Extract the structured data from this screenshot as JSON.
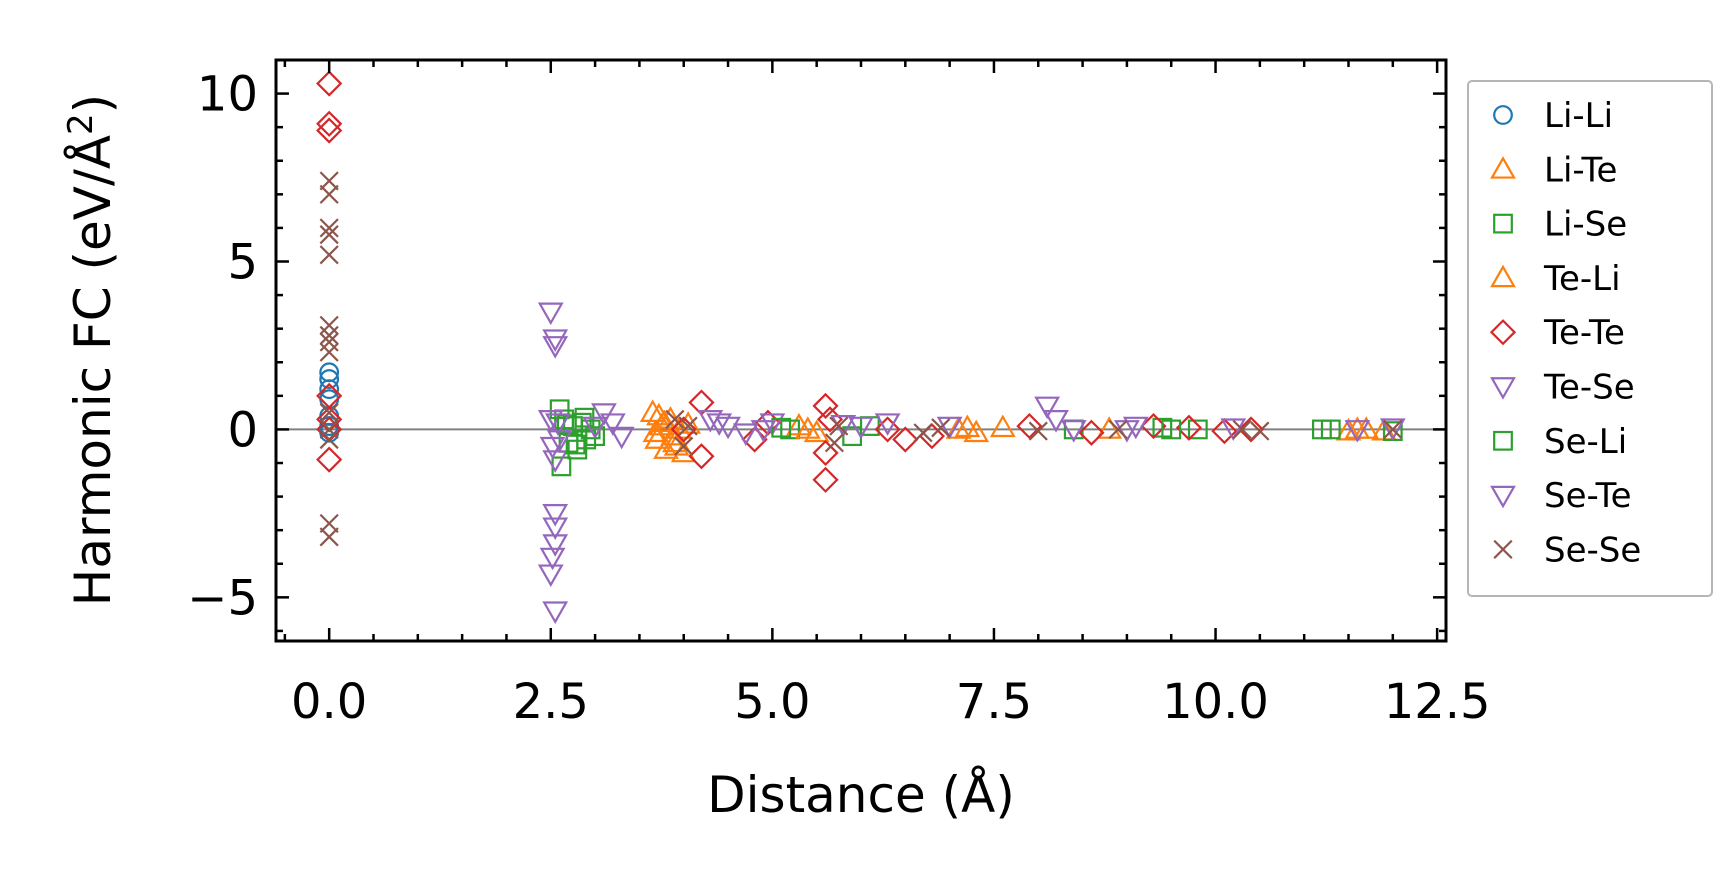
{
  "chart_data": {
    "type": "scatter",
    "xlabel": "Distance (Å)",
    "ylabel_main": "Harmonic FC (eV/Å",
    "ylabel_sup": "2",
    "ylabel_close": ")",
    "xlim": [
      -0.6,
      12.6
    ],
    "ylim": [
      -6.3,
      11.0
    ],
    "x_ticks": [
      0.0,
      2.5,
      5.0,
      7.5,
      10.0,
      12.5
    ],
    "x_tick_labels": [
      "0.0",
      "2.5",
      "5.0",
      "7.5",
      "10.0",
      "12.5"
    ],
    "y_ticks": [
      -5,
      0,
      5,
      10
    ],
    "y_tick_labels": [
      "−5",
      "0",
      "5",
      "10"
    ],
    "reference_line_y": 0,
    "legend_placement": "outside-right",
    "series": [
      {
        "name": "Li-Li",
        "marker": "circle",
        "color": "#1f77b4",
        "points": [
          [
            0,
            1.7
          ],
          [
            0,
            1.5
          ],
          [
            0,
            1.2
          ],
          [
            0,
            0.9
          ],
          [
            0,
            0.4
          ],
          [
            0,
            0.1
          ],
          [
            0,
            -0.1
          ]
        ]
      },
      {
        "name": "Li-Te",
        "marker": "triangle-up",
        "color": "#ff7f0e",
        "points": [
          [
            3.65,
            0.5
          ],
          [
            3.7,
            -0.3
          ],
          [
            3.75,
            0.1
          ],
          [
            3.8,
            -0.6
          ],
          [
            3.85,
            0.3
          ],
          [
            3.9,
            -0.4
          ],
          [
            3.95,
            0.0
          ],
          [
            4.0,
            -0.7
          ],
          [
            3.72,
            0.4
          ],
          [
            3.88,
            -0.2
          ],
          [
            5.3,
            0.1
          ],
          [
            5.5,
            -0.1
          ],
          [
            7.1,
            0.0
          ],
          [
            7.3,
            -0.1
          ],
          [
            7.6,
            0.05
          ],
          [
            8.8,
            0.0
          ],
          [
            11.5,
            -0.05
          ],
          [
            11.7,
            0.0
          ],
          [
            11.9,
            -0.05
          ]
        ]
      },
      {
        "name": "Li-Se",
        "marker": "square",
        "color": "#2ca02c",
        "points": [
          [
            2.6,
            0.6
          ],
          [
            2.62,
            -1.1
          ],
          [
            2.65,
            0.3
          ],
          [
            2.7,
            -0.4
          ],
          [
            2.75,
            0.1
          ],
          [
            2.8,
            -0.6
          ],
          [
            2.85,
            0.2
          ],
          [
            2.9,
            -0.3
          ],
          [
            2.95,
            0.0
          ],
          [
            3.0,
            -0.2
          ],
          [
            5.2,
            0.0
          ],
          [
            5.9,
            -0.2
          ],
          [
            6.1,
            0.1
          ],
          [
            8.4,
            0.0
          ],
          [
            9.4,
            0.05
          ],
          [
            9.8,
            0.0
          ],
          [
            11.2,
            0.0
          ],
          [
            12.0,
            -0.05
          ]
        ]
      },
      {
        "name": "Te-Li",
        "marker": "triangle-up",
        "color": "#ff7f0e",
        "points": [
          [
            3.68,
            -0.1
          ],
          [
            3.78,
            0.2
          ],
          [
            3.92,
            -0.5
          ],
          [
            4.05,
            0.15
          ],
          [
            5.4,
            0.0
          ],
          [
            7.2,
            0.05
          ],
          [
            11.6,
            0.0
          ]
        ]
      },
      {
        "name": "Te-Te",
        "marker": "diamond",
        "color": "#d62728",
        "points": [
          [
            0,
            10.3
          ],
          [
            0,
            9.1
          ],
          [
            0,
            8.9
          ],
          [
            0,
            1.0
          ],
          [
            0,
            0.3
          ],
          [
            0,
            0.0
          ],
          [
            0,
            -0.9
          ],
          [
            4.2,
            0.8
          ],
          [
            4.2,
            -0.8
          ],
          [
            4.0,
            0.0
          ],
          [
            4.8,
            -0.3
          ],
          [
            4.95,
            0.2
          ],
          [
            5.6,
            0.7
          ],
          [
            5.6,
            -0.7
          ],
          [
            5.6,
            -1.5
          ],
          [
            5.65,
            0.3
          ],
          [
            6.3,
            0.0
          ],
          [
            6.5,
            -0.3
          ],
          [
            6.8,
            -0.2
          ],
          [
            7.9,
            0.1
          ],
          [
            8.6,
            -0.1
          ],
          [
            9.3,
            0.1
          ],
          [
            9.7,
            0.05
          ],
          [
            10.1,
            -0.05
          ],
          [
            10.4,
            0.0
          ]
        ]
      },
      {
        "name": "Te-Se",
        "marker": "triangle-down",
        "color": "#9467bd",
        "points": [
          [
            2.5,
            3.5
          ],
          [
            2.55,
            2.7
          ],
          [
            2.55,
            2.5
          ],
          [
            2.55,
            -2.5
          ],
          [
            2.55,
            -2.9
          ],
          [
            2.55,
            -3.4
          ],
          [
            2.52,
            -3.8
          ],
          [
            2.5,
            -4.3
          ],
          [
            2.55,
            -5.4
          ],
          [
            2.5,
            0.3
          ],
          [
            2.52,
            -0.5
          ],
          [
            2.55,
            -0.9
          ],
          [
            3.1,
            0.5
          ],
          [
            3.2,
            0.2
          ],
          [
            3.3,
            -0.2
          ],
          [
            4.3,
            0.3
          ],
          [
            4.5,
            0.1
          ],
          [
            4.7,
            -0.1
          ],
          [
            5.0,
            0.2
          ],
          [
            6.0,
            0.1
          ],
          [
            6.3,
            0.2
          ],
          [
            8.1,
            0.7
          ],
          [
            8.2,
            0.3
          ],
          [
            8.4,
            0.0
          ],
          [
            9.1,
            0.1
          ]
        ]
      },
      {
        "name": "Se-Li",
        "marker": "square",
        "color": "#2ca02c",
        "points": [
          [
            2.68,
            0.15
          ],
          [
            2.78,
            -0.45
          ],
          [
            2.88,
            0.35
          ],
          [
            5.1,
            0.05
          ],
          [
            9.5,
            0.0
          ],
          [
            11.3,
            0.0
          ]
        ]
      },
      {
        "name": "Se-Te",
        "marker": "triangle-down",
        "color": "#9467bd",
        "points": [
          [
            2.58,
            0.2
          ],
          [
            2.6,
            -0.3
          ],
          [
            3.0,
            0.1
          ],
          [
            4.4,
            0.2
          ],
          [
            4.9,
            0.0
          ],
          [
            5.8,
            0.15
          ],
          [
            7.0,
            0.1
          ],
          [
            9.0,
            0.0
          ],
          [
            10.2,
            0.05
          ],
          [
            11.6,
            0.0
          ],
          [
            12.0,
            0.05
          ]
        ]
      },
      {
        "name": "Se-Se",
        "marker": "x",
        "color": "#8c564b",
        "points": [
          [
            0,
            7.4
          ],
          [
            0,
            7.0
          ],
          [
            0,
            6.0
          ],
          [
            0,
            5.8
          ],
          [
            0,
            5.2
          ],
          [
            0,
            3.1
          ],
          [
            0,
            2.8
          ],
          [
            0,
            2.6
          ],
          [
            0,
            2.3
          ],
          [
            0,
            0.5
          ],
          [
            0,
            0.0
          ],
          [
            0,
            -0.3
          ],
          [
            0,
            -2.8
          ],
          [
            0,
            -3.2
          ],
          [
            3.9,
            0.3
          ],
          [
            4.0,
            -0.5
          ],
          [
            4.05,
            0.1
          ],
          [
            5.7,
            -0.4
          ],
          [
            5.75,
            0.1
          ],
          [
            6.7,
            -0.1
          ],
          [
            6.9,
            0.05
          ],
          [
            8.0,
            -0.05
          ],
          [
            8.9,
            0.0
          ],
          [
            10.3,
            0.0
          ],
          [
            10.5,
            -0.05
          ],
          [
            12.0,
            0.0
          ]
        ]
      }
    ]
  }
}
